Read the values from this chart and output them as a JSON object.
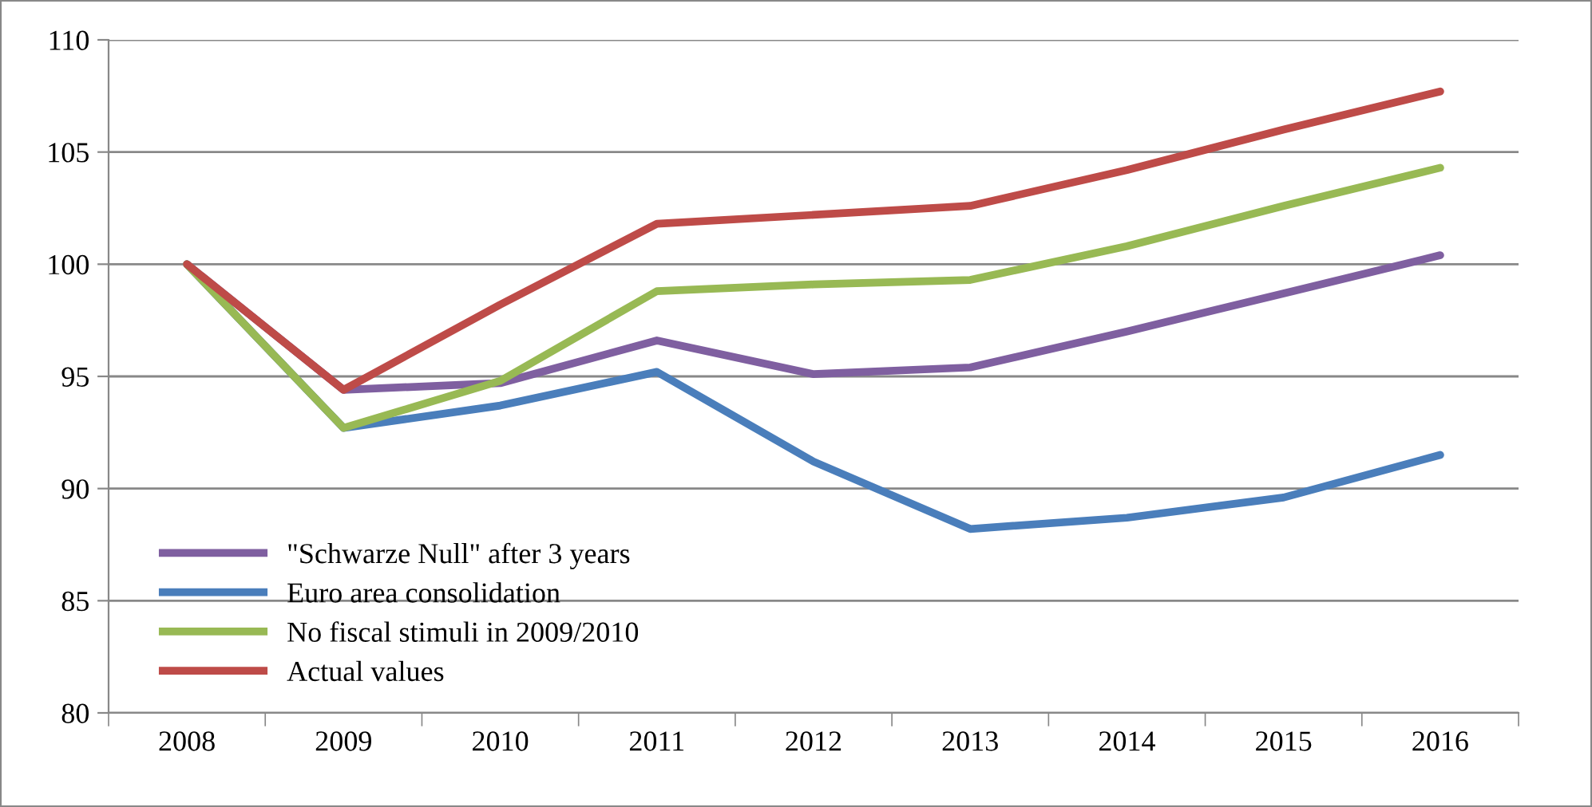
{
  "chart_data": {
    "type": "line",
    "categories": [
      "2008",
      "2009",
      "2010",
      "2011",
      "2012",
      "2013",
      "2014",
      "2015",
      "2016"
    ],
    "series": [
      {
        "name": "\"Schwarze Null\" after 3 years",
        "color": "#7f5fa0",
        "values": [
          100,
          94.4,
          94.7,
          96.6,
          95.1,
          95.4,
          97.0,
          98.7,
          100.4
        ]
      },
      {
        "name": "Euro area consolidation",
        "color": "#4a7ebb",
        "values": [
          100,
          92.7,
          93.7,
          95.2,
          91.2,
          88.2,
          88.7,
          89.6,
          91.5
        ]
      },
      {
        "name": "No fiscal stimuli in 2009/2010",
        "color": "#98b954",
        "values": [
          100,
          92.7,
          94.8,
          98.8,
          99.1,
          99.3,
          100.8,
          102.6,
          104.3
        ]
      },
      {
        "name": "Actual values",
        "color": "#be4b48",
        "values": [
          100,
          94.4,
          98.2,
          101.8,
          102.2,
          102.6,
          104.2,
          106.0,
          107.7
        ]
      }
    ],
    "ylim": [
      80,
      110
    ],
    "yticks": [
      80,
      85,
      90,
      95,
      100,
      105,
      110
    ],
    "grid": "y",
    "legend": "bottom left",
    "marker": "none",
    "line_style": "solid"
  }
}
